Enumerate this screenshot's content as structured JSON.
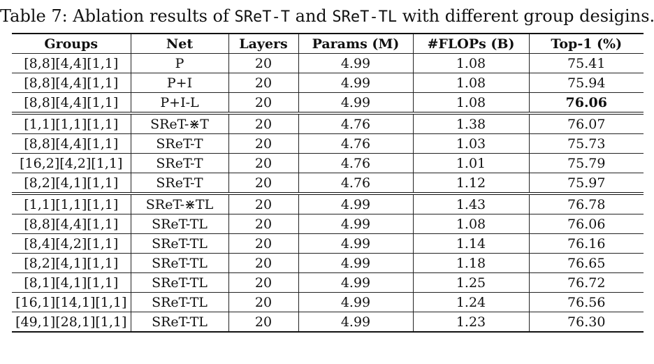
{
  "caption": {
    "prefix": "Table 7: Ablation results of ",
    "model_a": "SReT-T",
    "middle": " and ",
    "model_b": "SReT-TL",
    "suffix": " with different group desigins."
  },
  "headers": [
    "Groups",
    "Net",
    "Layers",
    "Params (M)",
    "#FLOPs (B)",
    "Top-1 (%)"
  ],
  "rows": [
    [
      "[8,8][4,4][1,1]",
      "P",
      "20",
      "4.99",
      "1.08",
      "75.41"
    ],
    [
      "[8,8][4,4][1,1]",
      "P+I",
      "20",
      "4.99",
      "1.08",
      "75.94"
    ],
    [
      "[8,8][4,4][1,1]",
      "P+I-L",
      "20",
      "4.99",
      "1.08",
      "76.06"
    ],
    [
      "[1,1][1,1][1,1]",
      "SReT-⋇T",
      "20",
      "4.76",
      "1.38",
      "76.07"
    ],
    [
      "[8,8][4,4][1,1]",
      "SReT-T",
      "20",
      "4.76",
      "1.03",
      "75.73"
    ],
    [
      "[16,2][4,2][1,1]",
      "SReT-T",
      "20",
      "4.76",
      "1.01",
      "75.79"
    ],
    [
      "[8,2][4,1][1,1]",
      "SReT-T",
      "20",
      "4.76",
      "1.12",
      "75.97"
    ],
    [
      "[1,1][1,1][1,1]",
      "SReT-⋇TL",
      "20",
      "4.99",
      "1.43",
      "76.78"
    ],
    [
      "[8,8][4,4][1,1]",
      "SReT-TL",
      "20",
      "4.99",
      "1.08",
      "76.06"
    ],
    [
      "[8,4][4,2][1,1]",
      "SReT-TL",
      "20",
      "4.99",
      "1.14",
      "76.16"
    ],
    [
      "[8,2][4,1][1,1]",
      "SReT-TL",
      "20",
      "4.99",
      "1.18",
      "76.65"
    ],
    [
      "[8,1][4,1][1,1]",
      "SReT-TL",
      "20",
      "4.99",
      "1.25",
      "76.72"
    ],
    [
      "[16,1][14,1][1,1]",
      "SReT-TL",
      "20",
      "4.99",
      "1.24",
      "76.56"
    ],
    [
      "[49,1][28,1][1,1]",
      "SReT-TL",
      "20",
      "4.99",
      "1.23",
      "76.30"
    ]
  ]
}
